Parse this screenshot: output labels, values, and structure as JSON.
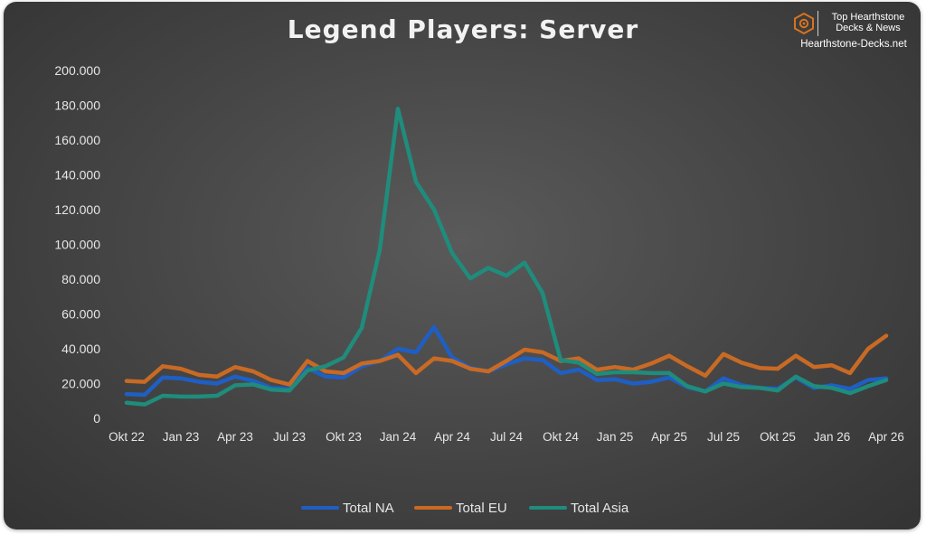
{
  "chart_data": {
    "type": "line",
    "title": "Legend Players: Server",
    "xlabel": "",
    "ylabel": "",
    "ylim": [
      0,
      200000
    ],
    "yticks": [
      0,
      20000,
      40000,
      60000,
      80000,
      100000,
      120000,
      140000,
      160000,
      180000,
      200000
    ],
    "ytick_labels": [
      "0",
      "20.000",
      "40.000",
      "60.000",
      "80.000",
      "100.000",
      "120.000",
      "140.000",
      "160.000",
      "180.000",
      "200.000"
    ],
    "x": [
      "Okt 22",
      "Nov 22",
      "Dez 22",
      "Jan 23",
      "Feb 23",
      "Mär 23",
      "Apr 23",
      "Mai 23",
      "Jun 23",
      "Jul 23",
      "Aug 23",
      "Sep 23",
      "Okt 23",
      "Nov 23",
      "Dez 23",
      "Jan 24",
      "Feb 24",
      "Mär 24",
      "Apr 24",
      "Mai 24",
      "Jun 24",
      "Jul 24",
      "Aug 24",
      "Sep 24",
      "Okt 24",
      "Nov 24",
      "Dez 24",
      "Jan 25",
      "Feb 25",
      "Mär 25",
      "Apr 25",
      "Mai 25",
      "Jun 25",
      "Jul 25",
      "Aug 25",
      "Sep 25",
      "Okt 25",
      "Nov 25",
      "Dez 25",
      "Jan 26",
      "Feb 26",
      "Mär 26",
      "Apr 26"
    ],
    "xtick_labels": [
      "Okt 22",
      "Jan 23",
      "Apr 23",
      "Jul 23",
      "Okt 23",
      "Jan 24",
      "Apr 24",
      "Jul 24",
      "Okt 24",
      "Jan 25",
      "Apr 25",
      "Jul 25",
      "Okt 25",
      "Jan 26",
      "Apr 26"
    ],
    "xtick_every": 3,
    "grid": false,
    "legend_position": "bottom",
    "series": [
      {
        "name": "Total NA",
        "color": "#1f5fc4",
        "values": [
          14000,
          13500,
          23500,
          23000,
          21000,
          20000,
          24000,
          21500,
          17500,
          17000,
          29000,
          24000,
          23500,
          30000,
          33000,
          40000,
          38000,
          52500,
          35000,
          29000,
          27000,
          31000,
          34500,
          33500,
          26000,
          28000,
          22000,
          22500,
          20000,
          21000,
          23500,
          18000,
          15500,
          23000,
          19000,
          17500,
          17000,
          23500,
          17500,
          19000,
          17000,
          22000,
          23000
        ]
      },
      {
        "name": "Total EU",
        "color": "#c96a24",
        "values": [
          21500,
          21000,
          30000,
          28500,
          25000,
          24000,
          29500,
          27000,
          22000,
          19500,
          33000,
          27000,
          26000,
          31500,
          33000,
          36500,
          26000,
          34500,
          33000,
          28500,
          27000,
          33000,
          39500,
          38000,
          33000,
          34500,
          28000,
          29500,
          28000,
          31500,
          36000,
          30000,
          24500,
          37000,
          32000,
          29000,
          28500,
          36000,
          29500,
          30500,
          26000,
          40000,
          47500
        ]
      },
      {
        "name": "Total Asia",
        "color": "#1f8c7c",
        "values": [
          9000,
          8000,
          13000,
          12500,
          12500,
          13000,
          19000,
          19500,
          16500,
          16000,
          27500,
          30000,
          35000,
          52000,
          97000,
          178000,
          136000,
          120000,
          95000,
          80500,
          86500,
          82000,
          89500,
          72000,
          33500,
          32000,
          25500,
          26500,
          26500,
          26000,
          26000,
          18500,
          15500,
          20000,
          18000,
          17500,
          16000,
          24000,
          18500,
          17500,
          14500,
          18500,
          22000
        ]
      }
    ]
  },
  "branding": {
    "line1": "Top Hearthstone",
    "line2": "Decks & News",
    "site": "Hearthstone-Decks.net",
    "logo_icon": "hexagon-swirl-icon",
    "logo_color": "#d8731e"
  }
}
